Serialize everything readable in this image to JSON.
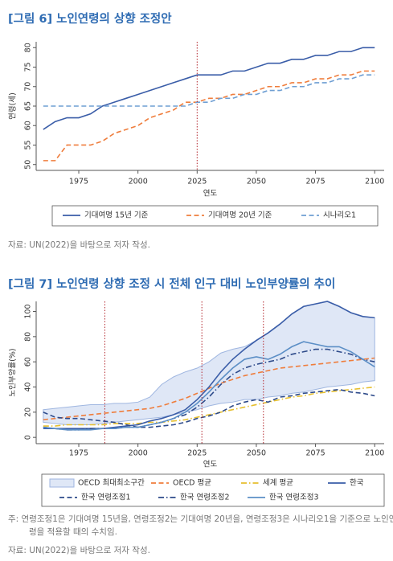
{
  "chart_data": [
    {
      "type": "line",
      "title": "[그림 6] 노인연령의 상향 조정안",
      "xlabel": "연도",
      "ylabel": "연령(세)",
      "xlim": [
        1957,
        2104
      ],
      "xticks": [
        1975,
        2000,
        2025,
        2050,
        2075,
        2100
      ],
      "ylim": [
        48.5,
        81.5
      ],
      "yticks": [
        50,
        55,
        60,
        65,
        70,
        75,
        80
      ],
      "vlines": [
        2025
      ],
      "vline_color": "#b3262d",
      "x": [
        1960,
        1965,
        1970,
        1975,
        1980,
        1985,
        1990,
        1995,
        2000,
        2005,
        2010,
        2015,
        2020,
        2025,
        2030,
        2035,
        2040,
        2045,
        2050,
        2055,
        2060,
        2065,
        2070,
        2075,
        2080,
        2085,
        2090,
        2095,
        2100
      ],
      "series": [
        {
          "name": "기대여명 15년 기준",
          "color": "#3a5da8",
          "style": "solid",
          "values": [
            59,
            61,
            62,
            62,
            63,
            65,
            66,
            67,
            68,
            69,
            70,
            71,
            72,
            73,
            73,
            73,
            74,
            74,
            75,
            76,
            76,
            77,
            77,
            78,
            78,
            79,
            79,
            80,
            80
          ]
        },
        {
          "name": "기대여명 20년 기준",
          "color": "#ef7d3c",
          "style": "dashed",
          "values": [
            51,
            51,
            55,
            55,
            55,
            56,
            58,
            59,
            60,
            62,
            63,
            64,
            66,
            66,
            67,
            67,
            68,
            68,
            69,
            70,
            70,
            71,
            71,
            72,
            72,
            73,
            73,
            74,
            74
          ]
        },
        {
          "name": "시나리오1",
          "color": "#6f9fd3",
          "style": "dashed",
          "values": [
            65,
            65,
            65,
            65,
            65,
            65,
            65,
            65,
            65,
            65,
            65,
            65,
            65,
            66,
            66,
            67,
            67,
            68,
            68,
            69,
            69,
            70,
            70,
            71,
            71,
            72,
            72,
            73,
            73
          ]
        }
      ],
      "source": "자료: UN(2022)을 바탕으로 저자 작성."
    },
    {
      "type": "line",
      "title": "[그림 7] 노인연령 상향 조정 시 전체 인구 대비 노인부양률의 추이",
      "xlabel": "연도",
      "ylabel": "노인부양률(%)",
      "xlim": [
        1957,
        2104
      ],
      "xticks": [
        1975,
        2000,
        2025,
        2050,
        2075,
        2100
      ],
      "ylim": [
        -5,
        108
      ],
      "yticks": [
        0,
        20,
        40,
        60,
        80,
        100
      ],
      "vlines": [
        1986,
        2027,
        2053
      ],
      "vline_color": "#b3262d",
      "x": [
        1960,
        1965,
        1970,
        1975,
        1980,
        1985,
        1990,
        1995,
        2000,
        2005,
        2010,
        2015,
        2020,
        2025,
        2030,
        2035,
        2040,
        2045,
        2050,
        2055,
        2060,
        2065,
        2070,
        2075,
        2080,
        2085,
        2090,
        2095,
        2100
      ],
      "series": [
        {
          "name": "OECD 최대최소구간",
          "color": "#dfe7f6",
          "edge_color": "#9fb6e0",
          "style": "band",
          "upper": [
            22,
            23,
            24,
            25,
            26,
            26,
            27,
            27,
            28,
            32,
            42,
            48,
            52,
            55,
            60,
            67,
            70,
            72,
            77,
            83,
            90,
            98,
            104,
            106,
            108,
            104,
            99,
            96,
            95
          ],
          "lower": [
            12,
            11,
            10,
            10,
            10,
            11,
            12,
            13,
            14,
            15,
            16,
            18,
            20,
            22,
            25,
            27,
            28,
            30,
            30,
            32,
            33,
            35,
            36,
            38,
            40,
            41,
            42,
            44,
            45
          ]
        },
        {
          "name": "OECD 평균",
          "color": "#ef7d3c",
          "style": "dashed",
          "values": [
            14,
            15,
            16,
            17,
            18,
            19,
            20,
            21,
            22,
            23,
            25,
            28,
            31,
            35,
            39,
            43,
            46,
            49,
            51,
            53,
            55,
            56,
            57,
            58,
            59,
            60,
            61,
            62,
            63
          ]
        },
        {
          "name": "세계 평균",
          "color": "#e6bf2e",
          "style": "dashdot",
          "values": [
            9,
            9,
            10,
            10,
            10,
            10,
            11,
            11,
            11,
            12,
            12,
            13,
            14,
            16,
            18,
            20,
            22,
            24,
            26,
            28,
            30,
            32,
            33,
            35,
            36,
            37,
            38,
            39,
            40
          ]
        },
        {
          "name": "한국",
          "color": "#3a5da8",
          "style": "solid",
          "values": [
            7,
            7,
            7,
            7,
            7,
            7,
            8,
            9,
            10,
            13,
            15,
            18,
            22,
            30,
            40,
            52,
            62,
            70,
            77,
            83,
            90,
            98,
            104,
            106,
            108,
            104,
            99,
            96,
            95
          ]
        },
        {
          "name": "한국 연령조정1",
          "color": "#2d4a8a",
          "style": "dashed",
          "values": [
            20,
            16,
            15,
            15,
            14,
            13,
            12,
            10,
            8,
            8,
            9,
            10,
            12,
            15,
            17,
            20,
            25,
            28,
            30,
            28,
            32,
            33,
            35,
            36,
            37,
            38,
            36,
            35,
            33
          ]
        },
        {
          "name": "한국 연령조정2",
          "color": "#2d4a8a",
          "style": "dashdot",
          "values": [
            8,
            7,
            6,
            6,
            7,
            7,
            7,
            8,
            8,
            10,
            12,
            15,
            18,
            24,
            32,
            42,
            50,
            55,
            58,
            60,
            62,
            66,
            68,
            70,
            70,
            68,
            66,
            62,
            60
          ]
        },
        {
          "name": "한국 연령조정3",
          "color": "#5c8fc6",
          "style": "solid",
          "values": [
            8,
            7,
            6,
            6,
            6,
            7,
            7,
            8,
            8,
            10,
            12,
            15,
            20,
            27,
            36,
            46,
            55,
            62,
            64,
            62,
            66,
            72,
            76,
            74,
            72,
            72,
            68,
            62,
            56
          ]
        }
      ],
      "note": "주: 연령조정1은 기대여명 15년을, 연령조정2는 기대여명 20년을, 연령조정3은 시나리오1을 기준으로 노인연령을 적용할 때의 수치임.",
      "source": "자료: UN(2022)을 바탕으로 저자 작성."
    }
  ]
}
